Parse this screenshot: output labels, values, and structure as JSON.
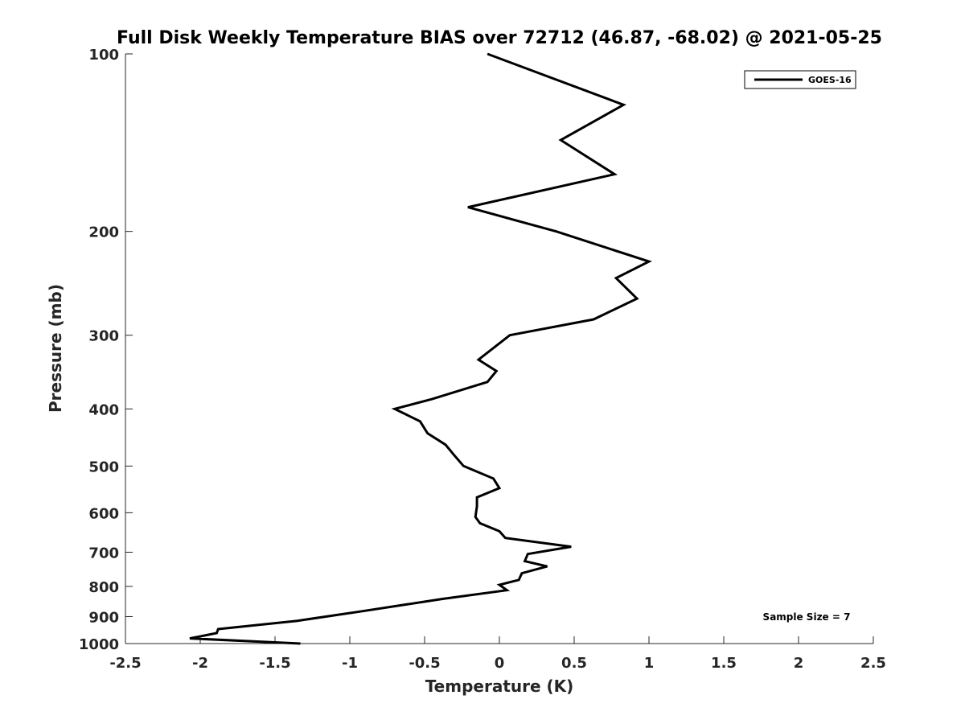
{
  "chart_data": {
    "type": "line",
    "title": "Full Disk Weekly Temperature BIAS over 72712 (46.87, -68.02) @ 2021-05-25",
    "xlabel": "Temperature (K)",
    "ylabel": "Pressure (mb)",
    "xlim": [
      -2.5,
      2.5
    ],
    "ylim": [
      100,
      1000
    ],
    "y_scale": "log",
    "y_reversed": true,
    "grid": false,
    "legend_position": "top-right",
    "x_ticks": [
      -2.5,
      -2,
      -1.5,
      -1,
      -0.5,
      0,
      0.5,
      1,
      1.5,
      2,
      2.5
    ],
    "x_tick_labels": [
      "-2.5",
      "-2",
      "-1.5",
      "-1",
      "-0.5",
      "0",
      "0.5",
      "1",
      "1.5",
      "2",
      "2.5"
    ],
    "y_ticks": [
      100,
      200,
      300,
      400,
      500,
      600,
      700,
      800,
      900,
      1000
    ],
    "y_tick_labels": [
      "100",
      "200",
      "300",
      "400",
      "500",
      "600",
      "700",
      "800",
      "900",
      "1000"
    ],
    "annotation": "Sample Size = 7",
    "series": [
      {
        "name": "GOES-16",
        "color": "#000000",
        "x": [
          -0.08,
          0.83,
          0.41,
          0.77,
          -0.21,
          0.38,
          1.0,
          0.78,
          0.92,
          0.63,
          0.07,
          -0.14,
          -0.02,
          -0.08,
          -0.45,
          -0.7,
          -0.53,
          -0.48,
          -0.36,
          -0.3,
          -0.24,
          -0.04,
          0.0,
          -0.15,
          -0.15,
          -0.16,
          -0.13,
          0.0,
          0.04,
          0.48,
          0.19,
          0.17,
          0.32,
          0.15,
          0.13,
          0.0,
          0.05,
          -0.38,
          -0.9,
          -1.35,
          -1.88,
          -1.89,
          -2.07,
          -1.33
        ],
        "y": [
          100,
          122,
          140,
          160,
          182,
          200,
          225,
          240,
          260,
          282,
          300,
          330,
          345,
          360,
          385,
          400,
          420,
          440,
          460,
          480,
          500,
          525,
          545,
          565,
          585,
          610,
          625,
          645,
          662,
          685,
          705,
          725,
          740,
          760,
          780,
          795,
          812,
          840,
          880,
          915,
          945,
          960,
          980,
          1000
        ]
      }
    ]
  }
}
